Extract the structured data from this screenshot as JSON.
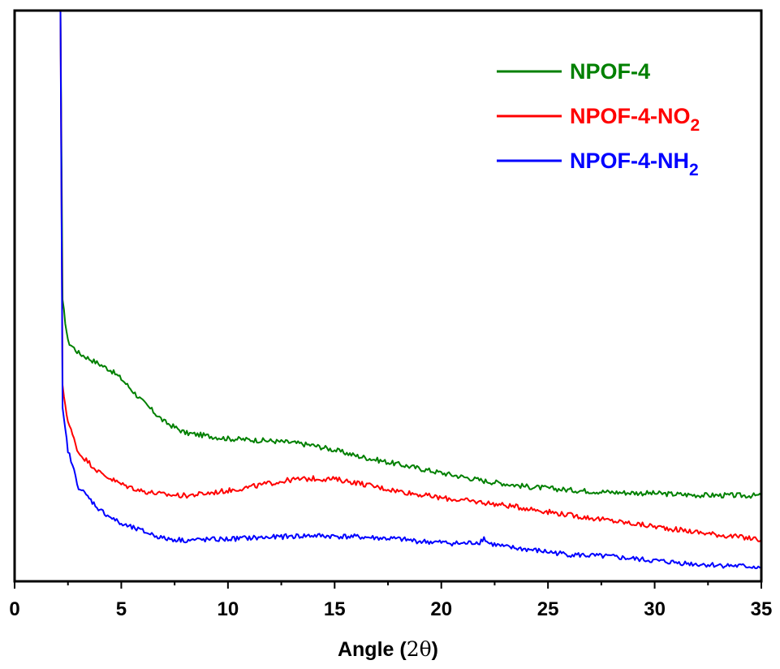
{
  "chart_data": {
    "type": "line",
    "title": "",
    "xlabel_main": "Angle (",
    "xlabel_symbol": "2θ",
    "xlabel_close": ")",
    "ylabel": "",
    "xlim": [
      0,
      35
    ],
    "ylim": [
      0,
      100
    ],
    "x_ticks": [
      "0",
      "5",
      "10",
      "15",
      "20",
      "25",
      "30",
      "35"
    ],
    "y_ticks_shown": false,
    "grid": false,
    "legend_position": "top-right",
    "series": [
      {
        "name_main": "NPOF-4",
        "name_sub": "",
        "color": "#008000",
        "points": [
          [
            2.15,
            100
          ],
          [
            2.25,
            49
          ],
          [
            2.5,
            42
          ],
          [
            3,
            40
          ],
          [
            3.5,
            39
          ],
          [
            4,
            38
          ],
          [
            4.5,
            37
          ],
          [
            5,
            35.5
          ],
          [
            6,
            31.5
          ],
          [
            7,
            28
          ],
          [
            8,
            26
          ],
          [
            9,
            25.5
          ],
          [
            10,
            25
          ],
          [
            11,
            24.8
          ],
          [
            12,
            24.6
          ],
          [
            13,
            24.3
          ],
          [
            14,
            23.8
          ],
          [
            15,
            23
          ],
          [
            16,
            22
          ],
          [
            18,
            20.5
          ],
          [
            20,
            19
          ],
          [
            22,
            17.6
          ],
          [
            24,
            16.6
          ],
          [
            26,
            16
          ],
          [
            28,
            15.6
          ],
          [
            30,
            15.4
          ],
          [
            32,
            15.1
          ],
          [
            35,
            15
          ]
        ]
      },
      {
        "name_main": "NPOF-4-NO",
        "name_sub": "2",
        "color": "#ff0000",
        "points": [
          [
            2.15,
            100
          ],
          [
            2.25,
            34
          ],
          [
            2.5,
            28
          ],
          [
            3,
            22.5
          ],
          [
            4,
            19
          ],
          [
            5,
            17
          ],
          [
            6,
            15.8
          ],
          [
            7,
            15.2
          ],
          [
            8,
            15
          ],
          [
            9,
            15.4
          ],
          [
            10,
            15.9
          ],
          [
            11,
            16.5
          ],
          [
            12,
            17.2
          ],
          [
            13,
            17.8
          ],
          [
            14,
            18
          ],
          [
            15,
            17.9
          ],
          [
            16,
            17.3
          ],
          [
            17,
            16.5
          ],
          [
            18,
            15.8
          ],
          [
            20,
            14.6
          ],
          [
            22,
            13.8
          ],
          [
            24,
            12.8
          ],
          [
            26,
            11.6
          ],
          [
            28,
            10.6
          ],
          [
            30,
            9.6
          ],
          [
            32,
            8.6
          ],
          [
            35,
            7.3
          ]
        ]
      },
      {
        "name_main": "NPOF-4-NH",
        "name_sub": "2",
        "color": "#0000ff",
        "points": [
          [
            2.15,
            100
          ],
          [
            2.25,
            30
          ],
          [
            2.5,
            23
          ],
          [
            3,
            16.5
          ],
          [
            4,
            12.5
          ],
          [
            5,
            10
          ],
          [
            6,
            8.8
          ],
          [
            7,
            7.5
          ],
          [
            8,
            7.2
          ],
          [
            9,
            7.3
          ],
          [
            10,
            7.4
          ],
          [
            11,
            7.6
          ],
          [
            12,
            7.7
          ],
          [
            13,
            7.9
          ],
          [
            14,
            8
          ],
          [
            15,
            7.9
          ],
          [
            16,
            7.8
          ],
          [
            17,
            7.6
          ],
          [
            18,
            7.4
          ],
          [
            19,
            7
          ],
          [
            20,
            6.8
          ],
          [
            21,
            6.6
          ],
          [
            21.8,
            6.9
          ],
          [
            22,
            7.6
          ],
          [
            22.2,
            6.7
          ],
          [
            23,
            6
          ],
          [
            24,
            5.6
          ],
          [
            26,
            4.7
          ],
          [
            28,
            4.3
          ],
          [
            30,
            3.6
          ],
          [
            32,
            3
          ],
          [
            35,
            2.5
          ]
        ]
      }
    ]
  }
}
